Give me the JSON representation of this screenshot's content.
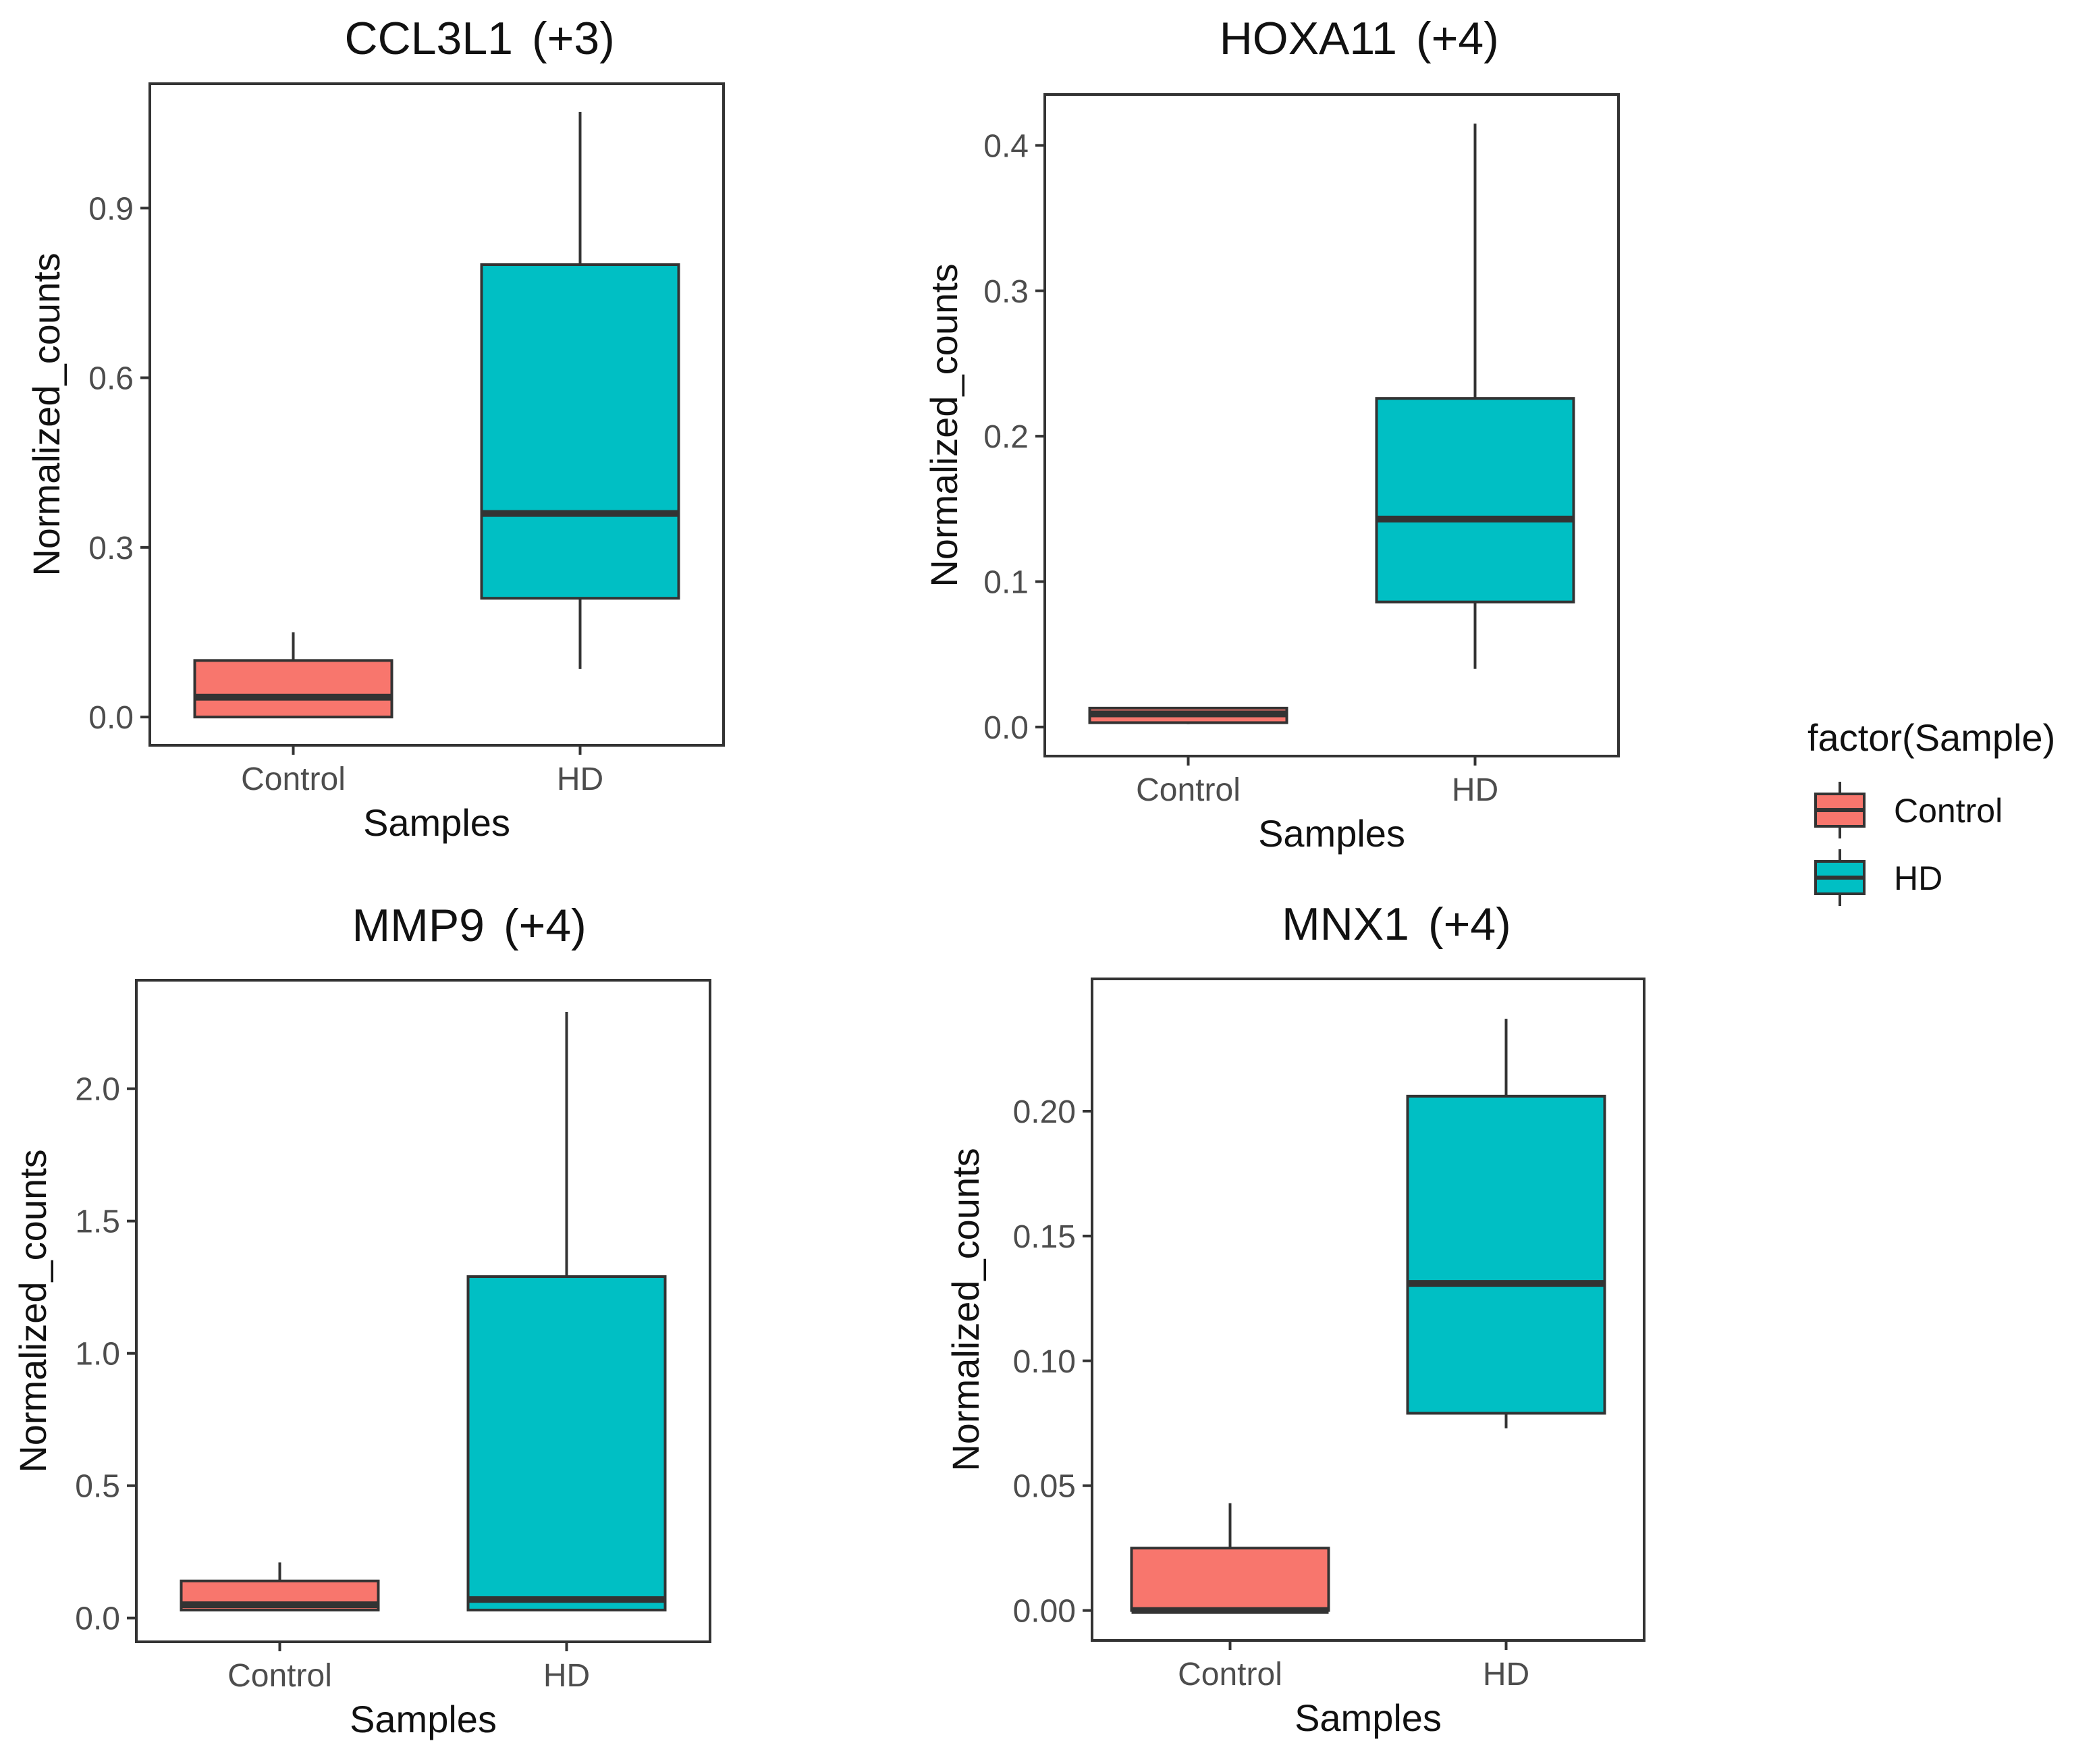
{
  "legend": {
    "title": "factor(Sample)",
    "items": [
      {
        "label": "Control",
        "color": "#F8766D"
      },
      {
        "label": "HD",
        "color": "#00BFC4"
      }
    ]
  },
  "chart_data": [
    {
      "type": "box",
      "title": "CCL3L1",
      "title_suffix": "(+3)",
      "xlabel": "Samples",
      "ylabel": "Normalized_counts",
      "categories": [
        "Control",
        "HD"
      ],
      "ylim": [
        -0.05,
        1.12
      ],
      "yticks": [
        0.0,
        0.3,
        0.6,
        0.9
      ],
      "ytick_labels": [
        "0.0",
        "0.3",
        "0.6",
        "0.9"
      ],
      "boxes": [
        {
          "category": "Control",
          "min": 0.0,
          "q1": 0.0,
          "median": 0.035,
          "q3": 0.1,
          "max": 0.15
        },
        {
          "category": "HD",
          "min": 0.085,
          "q1": 0.21,
          "median": 0.36,
          "q3": 0.8,
          "max": 1.07
        }
      ],
      "colors": [
        "#F8766D",
        "#00BFC4"
      ]
    },
    {
      "type": "box",
      "title": "HOXA11",
      "title_suffix": "(+4)",
      "xlabel": "Samples",
      "ylabel": "Normalized_counts",
      "categories": [
        "Control",
        "HD"
      ],
      "ylim": [
        -0.02,
        0.435
      ],
      "yticks": [
        0.0,
        0.1,
        0.2,
        0.3,
        0.4
      ],
      "ytick_labels": [
        "0.0",
        "0.1",
        "0.2",
        "0.3",
        "0.4"
      ],
      "boxes": [
        {
          "category": "Control",
          "min": 0.002,
          "q1": 0.003,
          "median": 0.009,
          "q3": 0.013,
          "max": 0.013
        },
        {
          "category": "HD",
          "min": 0.04,
          "q1": 0.086,
          "median": 0.143,
          "q3": 0.226,
          "max": 0.415
        }
      ],
      "colors": [
        "#F8766D",
        "#00BFC4"
      ]
    },
    {
      "type": "box",
      "title": "MMP9",
      "title_suffix": "(+4)",
      "xlabel": "Samples",
      "ylabel": "Normalized_counts",
      "categories": [
        "Control",
        "HD"
      ],
      "ylim": [
        -0.09,
        2.41
      ],
      "yticks": [
        0.0,
        0.5,
        1.0,
        1.5,
        2.0
      ],
      "ytick_labels": [
        "0.0",
        "0.5",
        "1.0",
        "1.5",
        "2.0"
      ],
      "boxes": [
        {
          "category": "Control",
          "min": 0.03,
          "q1": 0.03,
          "median": 0.05,
          "q3": 0.14,
          "max": 0.21
        },
        {
          "category": "HD",
          "min": 0.03,
          "q1": 0.03,
          "median": 0.07,
          "q3": 1.29,
          "max": 2.29
        }
      ],
      "colors": [
        "#F8766D",
        "#00BFC4"
      ]
    },
    {
      "type": "box",
      "title": "MNX1",
      "title_suffix": "(+4)",
      "xlabel": "Samples",
      "ylabel": "Normalized_counts",
      "categories": [
        "Control",
        "HD"
      ],
      "ylim": [
        -0.012,
        0.253
      ],
      "yticks": [
        0.0,
        0.05,
        0.1,
        0.15,
        0.2
      ],
      "ytick_labels": [
        "0.00",
        "0.05",
        "0.10",
        "0.15",
        "0.20"
      ],
      "boxes": [
        {
          "category": "Control",
          "min": 0.0,
          "q1": 0.0,
          "median": 0.0,
          "q3": 0.025,
          "max": 0.043
        },
        {
          "category": "HD",
          "min": 0.073,
          "q1": 0.079,
          "median": 0.131,
          "q3": 0.206,
          "max": 0.237
        }
      ],
      "colors": [
        "#F8766D",
        "#00BFC4"
      ]
    }
  ]
}
